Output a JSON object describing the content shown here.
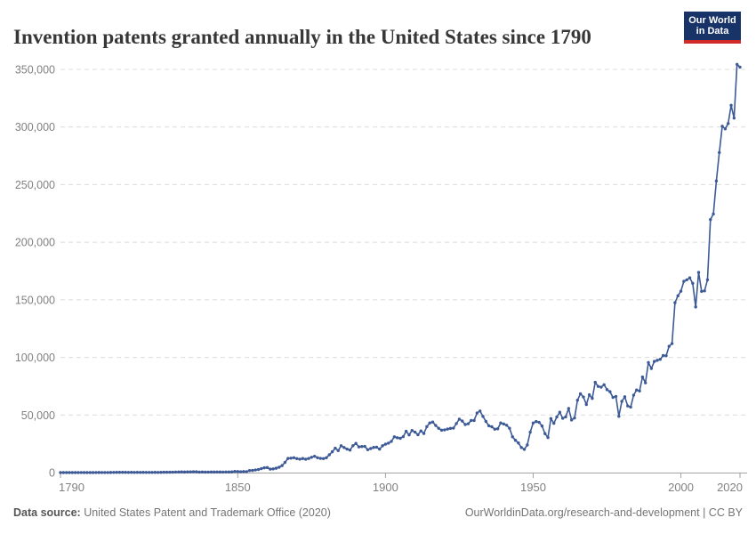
{
  "header": {
    "title": "Invention patents granted annually in the United States since 1790",
    "logo": {
      "line1": "Our World",
      "line2": "in Data",
      "bg_color": "#173367",
      "accent_color": "#d12a29"
    }
  },
  "footer": {
    "source_label": "Data source:",
    "source_text": " United States Patent and Trademark Office (2020)",
    "right_text": "OurWorldinData.org/research-and-development | CC BY"
  },
  "chart_data": {
    "type": "line",
    "title": "Invention patents granted annually in the United States since 1790",
    "xlabel": "",
    "ylabel": "",
    "xlim": [
      1790,
      2020
    ],
    "ylim": [
      0,
      350000
    ],
    "x_ticks": [
      1790,
      1850,
      1900,
      1950,
      2000,
      2020
    ],
    "y_ticks": [
      0,
      50000,
      100000,
      150000,
      200000,
      250000,
      300000,
      350000
    ],
    "grid": "horizontal-dashed",
    "legend": "none",
    "line_color": "#3d5a96",
    "marker": "circle",
    "x": [
      1790,
      1791,
      1792,
      1793,
      1794,
      1795,
      1796,
      1797,
      1798,
      1799,
      1800,
      1801,
      1802,
      1803,
      1804,
      1805,
      1806,
      1807,
      1808,
      1809,
      1810,
      1811,
      1812,
      1813,
      1814,
      1815,
      1816,
      1817,
      1818,
      1819,
      1820,
      1821,
      1822,
      1823,
      1824,
      1825,
      1826,
      1827,
      1828,
      1829,
      1830,
      1831,
      1832,
      1833,
      1834,
      1835,
      1836,
      1837,
      1838,
      1839,
      1840,
      1841,
      1842,
      1843,
      1844,
      1845,
      1846,
      1847,
      1848,
      1849,
      1850,
      1851,
      1852,
      1853,
      1854,
      1855,
      1856,
      1857,
      1858,
      1859,
      1860,
      1861,
      1862,
      1863,
      1864,
      1865,
      1866,
      1867,
      1868,
      1869,
      1870,
      1871,
      1872,
      1873,
      1874,
      1875,
      1876,
      1877,
      1878,
      1879,
      1880,
      1881,
      1882,
      1883,
      1884,
      1885,
      1886,
      1887,
      1888,
      1889,
      1890,
      1891,
      1892,
      1893,
      1894,
      1895,
      1896,
      1897,
      1898,
      1899,
      1900,
      1901,
      1902,
      1903,
      1904,
      1905,
      1906,
      1907,
      1908,
      1909,
      1910,
      1911,
      1912,
      1913,
      1914,
      1915,
      1916,
      1917,
      1918,
      1919,
      1920,
      1921,
      1922,
      1923,
      1924,
      1925,
      1926,
      1927,
      1928,
      1929,
      1930,
      1931,
      1932,
      1933,
      1934,
      1935,
      1936,
      1937,
      1938,
      1939,
      1940,
      1941,
      1942,
      1943,
      1944,
      1945,
      1946,
      1947,
      1948,
      1949,
      1950,
      1951,
      1952,
      1953,
      1954,
      1955,
      1956,
      1957,
      1958,
      1959,
      1960,
      1961,
      1962,
      1963,
      1964,
      1965,
      1966,
      1967,
      1968,
      1969,
      1970,
      1971,
      1972,
      1973,
      1974,
      1975,
      1976,
      1977,
      1978,
      1979,
      1980,
      1981,
      1982,
      1983,
      1984,
      1985,
      1986,
      1987,
      1988,
      1989,
      1990,
      1991,
      1992,
      1993,
      1994,
      1995,
      1996,
      1997,
      1998,
      1999,
      2000,
      2001,
      2002,
      2003,
      2004,
      2005,
      2006,
      2007,
      2008,
      2009,
      2010,
      2011,
      2012,
      2013,
      2014,
      2015,
      2016,
      2017,
      2018,
      2019,
      2020
    ],
    "values": [
      3,
      33,
      11,
      20,
      22,
      12,
      44,
      51,
      28,
      44,
      41,
      44,
      65,
      97,
      84,
      57,
      63,
      99,
      158,
      203,
      223,
      215,
      238,
      181,
      210,
      173,
      206,
      174,
      222,
      156,
      155,
      168,
      200,
      173,
      228,
      304,
      323,
      331,
      368,
      447,
      544,
      573,
      474,
      586,
      630,
      752,
      702,
      426,
      514,
      404,
      458,
      490,
      488,
      493,
      478,
      473,
      566,
      495,
      583,
      984,
      883,
      752,
      885,
      844,
      1755,
      1881,
      2302,
      2674,
      3455,
      4160,
      4357,
      3020,
      3214,
      3773,
      4630,
      6088,
      8863,
      12277,
      12526,
      12931,
      12137,
      11659,
      12180,
      11616,
      12230,
      13291,
      14169,
      12920,
      12345,
      12125,
      12903,
      15500,
      18091,
      21162,
      19118,
      23285,
      21767,
      20403,
      19551,
      23324,
      25313,
      22312,
      22647,
      22750,
      19855,
      20856,
      21822,
      22067,
      20377,
      23278,
      24644,
      25546,
      27119,
      31029,
      30258,
      29775,
      31170,
      35859,
      32735,
      36561,
      35141,
      32856,
      36198,
      33917,
      39892,
      43118,
      43892,
      40935,
      38452,
      36797,
      37060,
      37798,
      38369,
      38616,
      42574,
      46432,
      44733,
      41717,
      42357,
      45267,
      45226,
      51756,
      53458,
      48774,
      44420,
      40618,
      39782,
      37683,
      38061,
      43073,
      42238,
      41109,
      38449,
      31054,
      28053,
      25695,
      21803,
      20139,
      23963,
      35131,
      43040,
      44326,
      43616,
      40468,
      33809,
      30432,
      46918,
      42744,
      48330,
      52408,
      47170,
      48368,
      55691,
      45679,
      47375,
      62857,
      68405,
      65652,
      59104,
      67559,
      64427,
      78316,
      74810,
      74143,
      76278,
      71994,
      70226,
      65269,
      66102,
      48854,
      61819,
      65771,
      57888,
      56860,
      67200,
      71661,
      70860,
      82952,
      77924,
      95537,
      90365,
      96511,
      97444,
      98342,
      101676,
      101419,
      109645,
      111983,
      147517,
      153485,
      157494,
      166035,
      167331,
      169023,
      164290,
      143806,
      173772,
      157282,
      157772,
      167349,
      219614,
      224505,
      253155,
      277835,
      300678,
      298407,
      303049,
      318829,
      307759,
      354430,
      351993
    ]
  }
}
